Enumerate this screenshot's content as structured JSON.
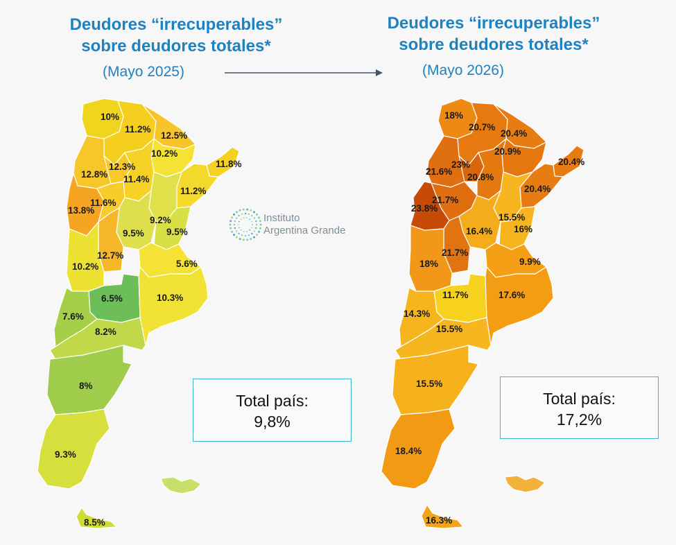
{
  "left": {
    "title_line1": "Deudores “irrecuperables”",
    "title_line2": "sobre deudores totales*",
    "period": "(Mayo 2025)",
    "total_label": "Total país:",
    "total_value": "9,8%",
    "provinces": [
      {
        "name": "Jujuy",
        "value": "10%",
        "color": "#f0d51f"
      },
      {
        "name": "Salta",
        "value": "11.2%",
        "color": "#f5cf1d"
      },
      {
        "name": "Formosa",
        "value": "12.5%",
        "color": "#f7c52a"
      },
      {
        "name": "Chaco",
        "value": "10.2%",
        "color": "#f4e235"
      },
      {
        "name": "Misiones",
        "value": "11.8%",
        "color": "#f5d21f"
      },
      {
        "name": "Catamarca",
        "value": "12.8%",
        "color": "#f7c62a"
      },
      {
        "name": "Tucumán",
        "value": "12.3%",
        "color": "#f7c92a"
      },
      {
        "name": "Santiago del Estero",
        "value": "11.4%",
        "color": "#f6d226"
      },
      {
        "name": "Corrientes",
        "value": "11.2%",
        "color": "#f3d92c"
      },
      {
        "name": "La Rioja",
        "value": "13.8%",
        "color": "#f5a522"
      },
      {
        "name": "Córdoba (norte)",
        "value": "11.6%",
        "color": "#f6cd2b"
      },
      {
        "name": "Santa Fe",
        "value": "9.2%",
        "color": "#dfe04a"
      },
      {
        "name": "Santa Fe (sur)",
        "value": "9.5%",
        "color": "#dde04c"
      },
      {
        "name": "Entre Ríos",
        "value": "9.5%",
        "color": "#d9e045"
      },
      {
        "name": "San Luis",
        "value": "12.7%",
        "color": "#f6b62a"
      },
      {
        "name": "Mendoza",
        "value": "10.2%",
        "color": "#ede232"
      },
      {
        "name": "Buenos Aires (costa)",
        "value": "5.6%",
        "color": "#f4e334"
      },
      {
        "name": "La Pampa",
        "value": "6.5%",
        "color": "#6cbe59"
      },
      {
        "name": "Buenos Aires",
        "value": "10.3%",
        "color": "#f1e235"
      },
      {
        "name": "Neuquén",
        "value": "7.6%",
        "color": "#a5cf48"
      },
      {
        "name": "Río Negro",
        "value": "8.2%",
        "color": "#bfd948"
      },
      {
        "name": "Chubut",
        "value": "8%",
        "color": "#9fcc4a"
      },
      {
        "name": "Santa Cruz",
        "value": "9.3%",
        "color": "#d7df3c"
      },
      {
        "name": "Tierra del Fuego",
        "value": "8.5%",
        "color": "#cfdc38"
      }
    ],
    "islands_color": "#c8df6a"
  },
  "right": {
    "title_line1": "Deudores “irrecuperables”",
    "title_line2": "sobre deudores totales*",
    "period": "(Mayo 2026)",
    "total_label": "Total país:",
    "total_value": "17,2%",
    "provinces": [
      {
        "name": "Jujuy",
        "value": "18%",
        "color": "#ee8a14"
      },
      {
        "name": "Salta",
        "value": "20.7%",
        "color": "#e67a10"
      },
      {
        "name": "Formosa",
        "value": "20.4%",
        "color": "#e67c12"
      },
      {
        "name": "Chaco",
        "value": "20.9%",
        "color": "#e4780f"
      },
      {
        "name": "Misiones",
        "value": "20.4%",
        "color": "#e77c12"
      },
      {
        "name": "Catamarca",
        "value": "21.6%",
        "color": "#df6f10"
      },
      {
        "name": "Tucumán",
        "value": "23%",
        "color": "#d9650f"
      },
      {
        "name": "Santiago del Estero",
        "value": "20.8%",
        "color": "#e4790f"
      },
      {
        "name": "Corrientes",
        "value": "20.4%",
        "color": "#e77c12"
      },
      {
        "name": "La Rioja",
        "value": "21.7%",
        "color": "#de6e10"
      },
      {
        "name": "San Juan",
        "value": "23.8%",
        "color": "#c84a07"
      },
      {
        "name": "Santa Fe",
        "value": "15.5%",
        "color": "#f7b61f"
      },
      {
        "name": "Córdoba",
        "value": "16.4%",
        "color": "#f4ac1c"
      },
      {
        "name": "Entre Ríos",
        "value": "16%",
        "color": "#f6b41f"
      },
      {
        "name": "San Luis",
        "value": "21.7%",
        "color": "#e07410"
      },
      {
        "name": "Mendoza",
        "value": "18%",
        "color": "#f29717"
      },
      {
        "name": "Buenos Aires (costa)",
        "value": "9.9%",
        "color": "#f59f15"
      },
      {
        "name": "La Pampa",
        "value": "11.7%",
        "color": "#f6d21f"
      },
      {
        "name": "Buenos Aires",
        "value": "17.6%",
        "color": "#f39d15"
      },
      {
        "name": "Neuquén",
        "value": "14.3%",
        "color": "#f6b51f"
      },
      {
        "name": "Río Negro",
        "value": "15.5%",
        "color": "#f6b61f"
      },
      {
        "name": "Chubut",
        "value": "15.5%",
        "color": "#f6b21d"
      },
      {
        "name": "Santa Cruz",
        "value": "18.4%",
        "color": "#f39a14"
      },
      {
        "name": "Tierra del Fuego",
        "value": "16.3%",
        "color": "#f3a31a"
      }
    ],
    "islands_color": "#f2b13a"
  },
  "logo": {
    "line1": "Instituto",
    "line2": "Argentina Grande"
  },
  "colors": {
    "title": "#1e82c0",
    "box_border": "#39b5cf",
    "arrow": "#44546a"
  }
}
